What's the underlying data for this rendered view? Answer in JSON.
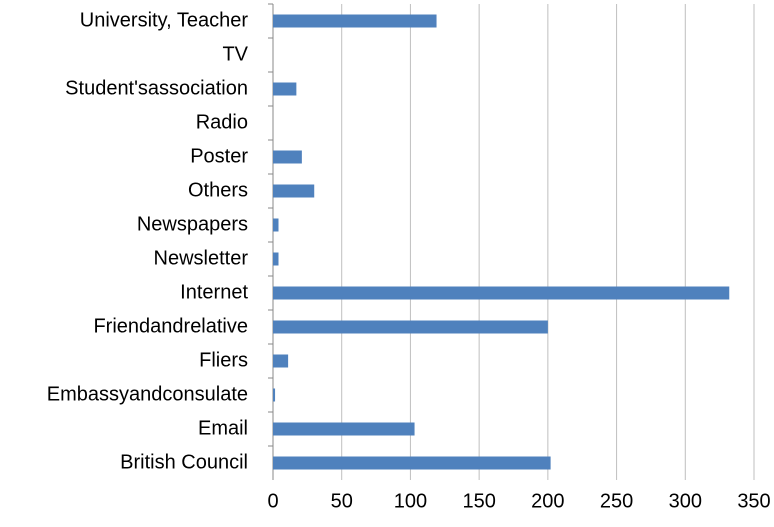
{
  "chart_data": {
    "type": "hbar",
    "categories": [
      "University, Teacher",
      "TV",
      "Student'sassociation",
      "Radio",
      "Poster",
      "Others",
      "Newspapers",
      "Newsletter",
      "Internet",
      "Friendandrelative",
      "Fliers",
      "Embassyandconsulate",
      "Email",
      "British Council"
    ],
    "values": [
      119,
      0,
      17,
      0,
      21,
      30,
      4,
      4,
      332,
      200,
      11,
      1.5,
      103,
      202
    ],
    "color": "#4f81bd",
    "xlim": [
      0,
      350
    ],
    "xticks": [
      0,
      50,
      100,
      150,
      200,
      250,
      300,
      350
    ],
    "grid": true
  }
}
